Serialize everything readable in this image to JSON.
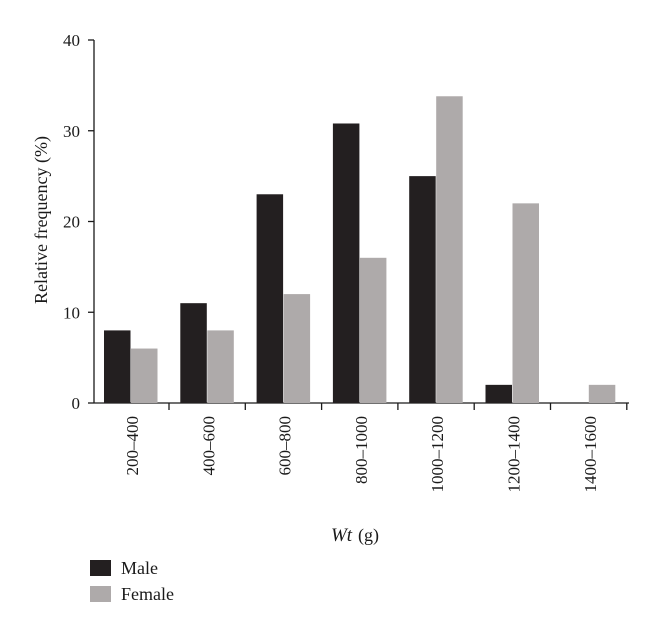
{
  "chart_data": {
    "type": "bar",
    "categories": [
      "200–400",
      "400–600",
      "600–800",
      "800–1000",
      "1000–1200",
      "1200–1400",
      "1400–1600"
    ],
    "series": [
      {
        "name": "Male",
        "color": "#231f20",
        "values": [
          8,
          11,
          23,
          30.8,
          25,
          2,
          0
        ]
      },
      {
        "name": "Female",
        "color": "#aeaaaa",
        "values": [
          6,
          8,
          12,
          16,
          33.8,
          22,
          2
        ]
      }
    ],
    "xlabel_italic": "Wt",
    "xlabel_unit": "(g)",
    "ylabel": "Relative frequency (%)",
    "ylim": [
      0,
      40
    ],
    "yticks": [
      0,
      10,
      20,
      30,
      40
    ],
    "grid": false,
    "legend_position": "bottom-left"
  }
}
